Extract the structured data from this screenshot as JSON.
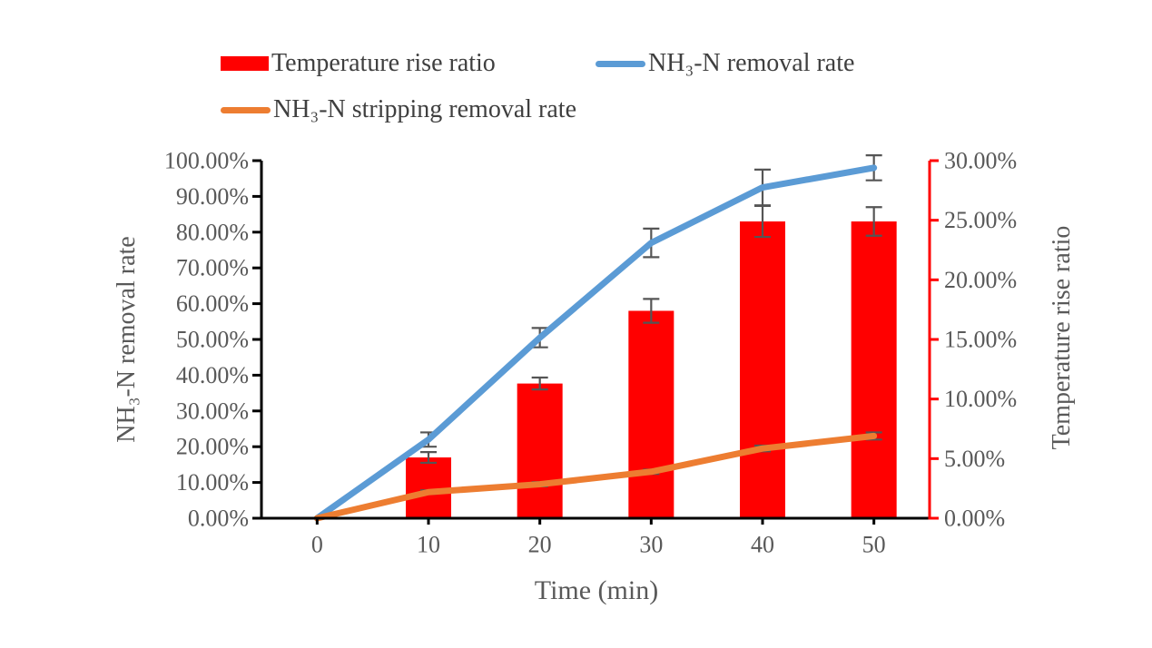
{
  "figure": {
    "background": "#ffffff"
  },
  "chart_data": {
    "type": "bar+line combo",
    "title": "",
    "x": [
      0,
      10,
      20,
      30,
      40,
      50
    ],
    "x_tick_labels": [
      "0",
      "10",
      "20",
      "30",
      "40",
      "50"
    ],
    "xlabel": "Time (min)",
    "grid": "off",
    "legend_position": "top",
    "left_axis": {
      "label": "NH₃-N removal rate",
      "min": 0,
      "max": 100,
      "step": 10,
      "tick_labels": [
        "0.00%",
        "10.00%",
        "20.00%",
        "30.00%",
        "40.00%",
        "50.00%",
        "60.00%",
        "70.00%",
        "80.00%",
        "90.00%",
        "100.00%"
      ],
      "line_color": "#000000"
    },
    "right_axis": {
      "label": "Temperature rise ratio",
      "min": 0,
      "max": 30,
      "step": 5,
      "tick_labels": [
        "0.00%",
        "5.00%",
        "10.00%",
        "15.00%",
        "20.00%",
        "25.00%",
        "30.00%"
      ],
      "line_color": "#ff0000"
    },
    "series": [
      {
        "name": "Temperature rise ratio",
        "type": "bar",
        "axis": "right",
        "color": "#ff0000",
        "values": [
          0,
          5.1,
          11.3,
          17.4,
          24.9,
          24.9
        ],
        "errors": [
          0,
          0.45,
          0.5,
          1.0,
          1.3,
          1.2
        ]
      },
      {
        "name": "NH₃-N removal rate",
        "type": "line",
        "axis": "left",
        "color": "#5b9bd5",
        "values": [
          0,
          22,
          50.5,
          77,
          92.5,
          98
        ],
        "errors": [
          0,
          2,
          2.7,
          4,
          5,
          3.5
        ]
      },
      {
        "name": "NH₃-N stripping removal rate",
        "type": "line",
        "axis": "left",
        "color": "#ed7d31",
        "values": [
          0,
          7.3,
          9.5,
          13,
          19.5,
          23
        ],
        "errors": [
          0,
          0.5,
          0.6,
          0.6,
          0.8,
          1.0
        ]
      }
    ],
    "error_bar_color": "#555555",
    "tick_label_color": "#595959"
  }
}
